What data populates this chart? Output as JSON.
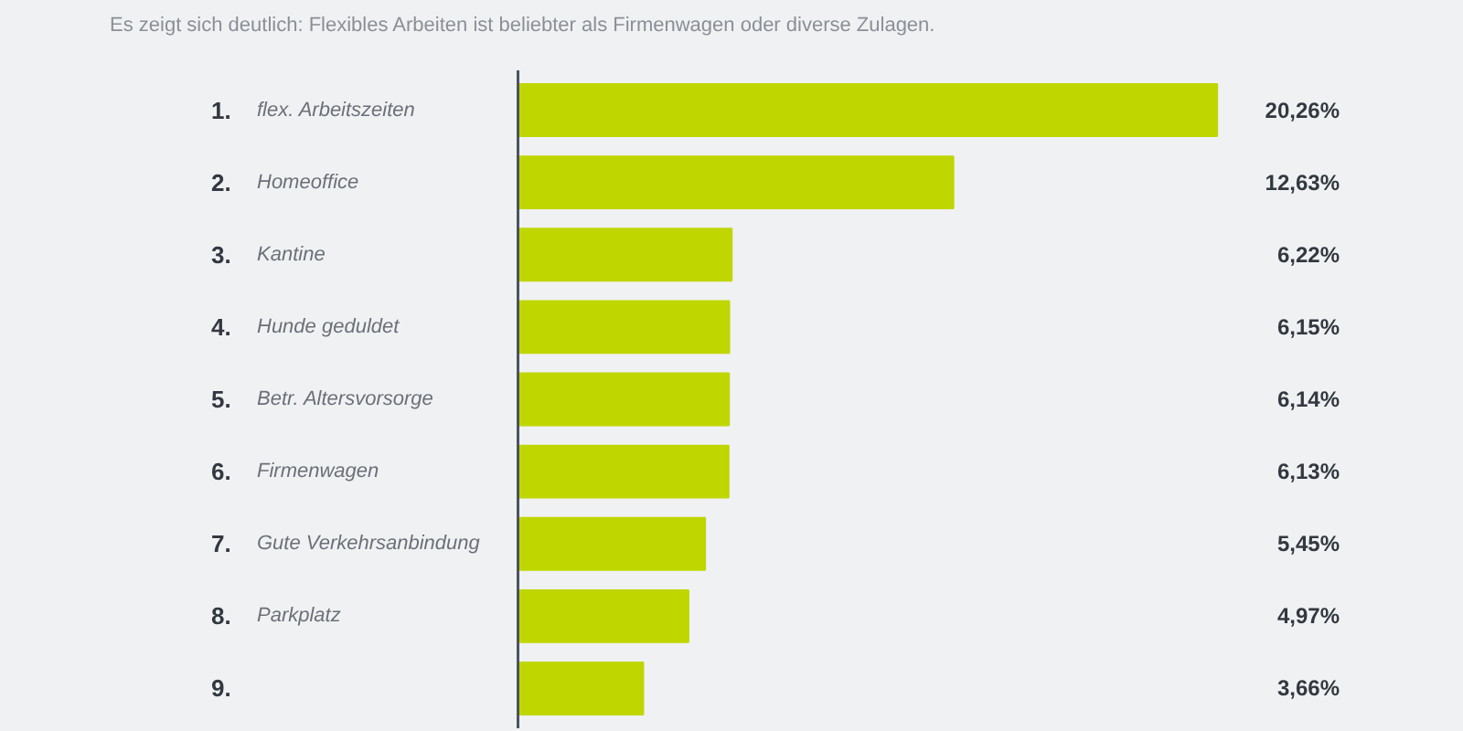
{
  "chart_data": {
    "type": "bar",
    "orientation": "horizontal",
    "subtitle": "Es zeigt sich deutlich: Flexibles Arbeiten ist beliebter als Firmenwagen oder diverse Zulagen.",
    "categories": [
      "1. flex. Arbeitszeiten",
      "2. Homeoffice",
      "3. Kantine",
      "4. Hunde geduldet",
      "5. Betr. Altersvorsorge",
      "6. Firmenwagen",
      "7. Gute Verkehrsanbindung",
      "8. Parkplatz",
      "9."
    ],
    "values": [
      20.26,
      12.63,
      6.22,
      6.15,
      6.14,
      6.13,
      5.45,
      4.97,
      3.66
    ],
    "value_labels": [
      "20,26%",
      "12,63%",
      "6,22%",
      "6,15%",
      "6,14%",
      "6,13%",
      "5,45%",
      "4,97%",
      "3,66%"
    ],
    "color": "#bfd600",
    "tick_labels": false,
    "grid": false
  }
}
